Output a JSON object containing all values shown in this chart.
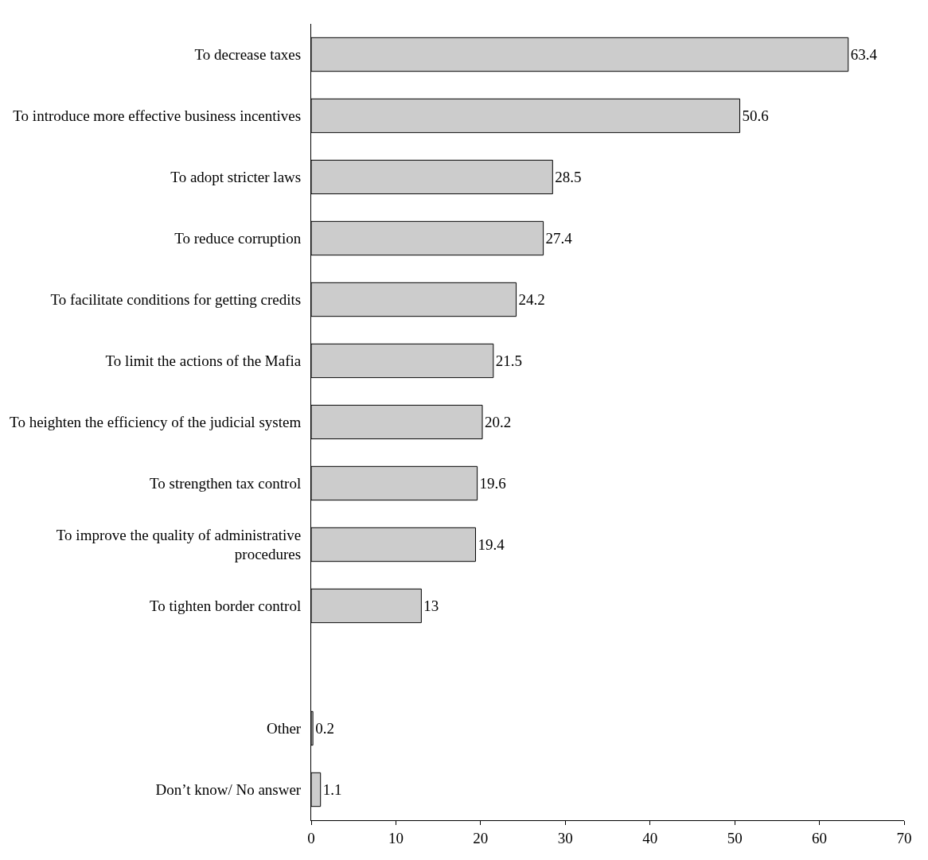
{
  "chart_data": {
    "type": "bar",
    "orientation": "horizontal",
    "categories": [
      "To decrease taxes",
      "To introduce more effective business incentives",
      "To adopt stricter laws",
      "To reduce corruption",
      "To facilitate conditions for getting credits",
      "To limit the actions of the Mafia",
      "To heighten the efficiency of the judicial system",
      "To strengthen tax control",
      "To improve the quality of administrative procedures",
      "To tighten border control",
      null,
      "Other",
      "Don’t know/ No answer"
    ],
    "values": [
      63.4,
      50.6,
      28.5,
      27.4,
      24.2,
      21.5,
      20.2,
      19.6,
      19.4,
      13,
      null,
      0.2,
      1.1
    ],
    "color": "#cccccc",
    "xlim": [
      0,
      70
    ],
    "xticks": [
      0,
      10,
      20,
      30,
      40,
      50,
      60,
      70
    ],
    "data_labels": true
  }
}
